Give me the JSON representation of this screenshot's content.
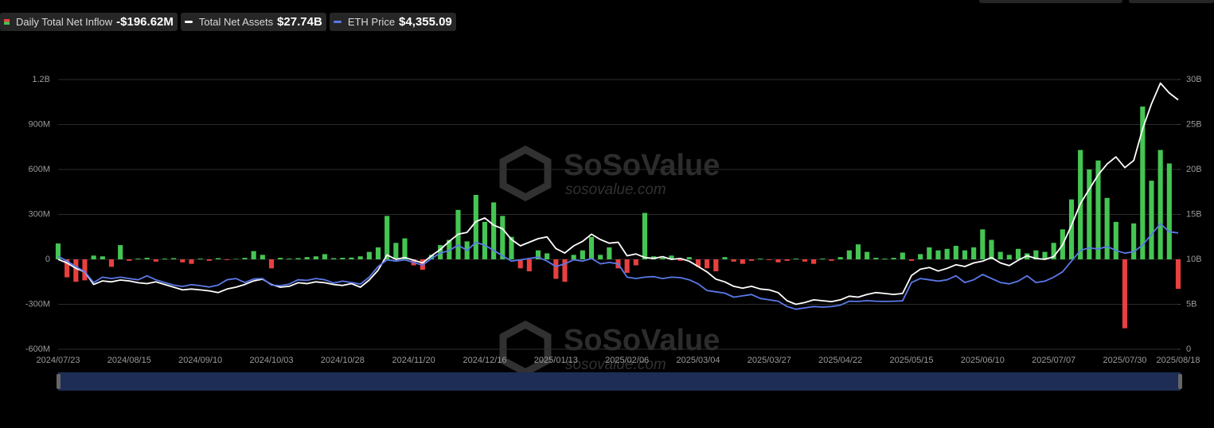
{
  "chart_data": {
    "type": "combo",
    "watermark": {
      "brand": "SoSoValue",
      "site": "sosovalue.com"
    },
    "categories": [
      "2024/07/23",
      null,
      null,
      null,
      null,
      null,
      null,
      null,
      "2024/08/15",
      null,
      null,
      null,
      null,
      null,
      null,
      null,
      "2024/09/10",
      null,
      null,
      null,
      null,
      null,
      null,
      null,
      "2024/10/03",
      null,
      null,
      null,
      null,
      null,
      null,
      null,
      "2024/10/28",
      null,
      null,
      null,
      null,
      null,
      null,
      null,
      "2024/11/20",
      null,
      null,
      null,
      null,
      null,
      null,
      null,
      "2024/12/16",
      null,
      null,
      null,
      null,
      null,
      null,
      null,
      "2025/01/13",
      null,
      null,
      null,
      null,
      null,
      null,
      null,
      "2025/02/06",
      null,
      null,
      null,
      null,
      null,
      null,
      null,
      "2025/03/04",
      null,
      null,
      null,
      null,
      null,
      null,
      null,
      "2025/03/27",
      null,
      null,
      null,
      null,
      null,
      null,
      null,
      "2025/04/22",
      null,
      null,
      null,
      null,
      null,
      null,
      null,
      "2025/05/15",
      null,
      null,
      null,
      null,
      null,
      null,
      null,
      "2025/06/10",
      null,
      null,
      null,
      null,
      null,
      null,
      null,
      "2025/07/07",
      null,
      null,
      null,
      null,
      null,
      null,
      null,
      "2025/07/30",
      null,
      null,
      null,
      null,
      null,
      "2025/08/18"
    ],
    "ylim": [
      -600,
      1200
    ],
    "yticks": [
      {
        "value": -600,
        "label": "-600M"
      },
      {
        "value": -300,
        "label": "-300M"
      },
      0,
      {
        "value": 300,
        "label": "300M"
      },
      {
        "value": 600,
        "label": "600M"
      },
      {
        "value": 900,
        "label": "900M"
      },
      {
        "value": 1200,
        "label": "1.2B"
      }
    ],
    "y2lim": [
      0,
      30
    ],
    "y2ticks": [
      0,
      {
        "value": 5,
        "label": "5B"
      },
      {
        "value": 10,
        "label": "10B"
      },
      {
        "value": 15,
        "label": "15B"
      },
      {
        "value": 20,
        "label": "20B"
      },
      {
        "value": 25,
        "label": "25B"
      },
      {
        "value": 30,
        "label": "30B"
      }
    ],
    "y3lim": [
      0,
      10100
    ],
    "grid": true,
    "series": [
      {
        "name": "Daily Total Net Inflow",
        "current_label": "-$196.62M",
        "type": "bar",
        "axis": "y",
        "color": "#45c553",
        "negative_color": "#e8403f",
        "values": [
          106,
          -120,
          -150,
          -140,
          25,
          20,
          -50,
          95,
          -10,
          5,
          10,
          -15,
          5,
          8,
          -20,
          -30,
          5,
          -10,
          8,
          -5,
          3,
          10,
          55,
          30,
          -60,
          10,
          5,
          8,
          15,
          20,
          35,
          8,
          10,
          12,
          20,
          50,
          80,
          290,
          110,
          140,
          -40,
          -70,
          30,
          95,
          130,
          330,
          120,
          430,
          250,
          380,
          290,
          150,
          -60,
          -80,
          60,
          40,
          -130,
          -150,
          30,
          60,
          150,
          30,
          80,
          -60,
          -90,
          -40,
          310,
          20,
          10,
          25,
          -10,
          15,
          -50,
          -60,
          -80,
          15,
          -15,
          -30,
          -10,
          5,
          -5,
          -20,
          -10,
          5,
          -15,
          -30,
          5,
          -10,
          15,
          60,
          100,
          50,
          10,
          5,
          10,
          45,
          -10,
          35,
          80,
          60,
          70,
          90,
          60,
          80,
          200,
          130,
          50,
          30,
          70,
          40,
          60,
          50,
          110,
          200,
          400,
          730,
          600,
          660,
          410,
          250,
          -460,
          240,
          1020,
          525,
          730,
          640,
          -196.62
        ]
      },
      {
        "name": "Total Net Assets",
        "current_label": "$27.74B",
        "type": "line",
        "axis": "y2",
        "color": "#ffffff",
        "values": [
          10.0,
          9.6,
          9.0,
          8.6,
          7.2,
          7.6,
          7.5,
          7.7,
          7.6,
          7.4,
          7.3,
          7.5,
          7.2,
          6.9,
          6.6,
          6.7,
          6.6,
          6.5,
          6.3,
          6.7,
          6.9,
          7.2,
          7.6,
          7.8,
          7.2,
          6.9,
          7.0,
          7.4,
          7.3,
          7.5,
          7.4,
          7.2,
          7.1,
          7.3,
          6.9,
          7.7,
          8.8,
          10.5,
          10.0,
          10.2,
          9.9,
          9.6,
          10.4,
          11.1,
          12.0,
          12.8,
          13.0,
          14.2,
          14.6,
          13.8,
          13.4,
          12.2,
          11.5,
          11.9,
          12.3,
          12.5,
          11.2,
          10.7,
          11.5,
          12.0,
          12.8,
          12.2,
          11.8,
          11.9,
          10.4,
          10.6,
          10.2,
          10.1,
          10.3,
          10.0,
          10.1,
          9.8,
          9.2,
          8.6,
          7.8,
          7.5,
          7.0,
          6.8,
          7.0,
          6.7,
          6.6,
          6.3,
          5.4,
          5.0,
          5.2,
          5.5,
          5.4,
          5.3,
          5.5,
          5.9,
          5.8,
          6.1,
          6.3,
          6.2,
          6.1,
          6.2,
          8.2,
          8.9,
          9.1,
          8.7,
          9.0,
          9.4,
          9.2,
          9.6,
          9.8,
          10.2,
          9.6,
          9.3,
          9.9,
          10.4,
          10.1,
          10.0,
          10.3,
          11.6,
          13.8,
          16.2,
          17.8,
          19.4,
          20.6,
          21.4,
          20.2,
          21.0,
          24.5,
          27.3,
          29.6,
          28.5,
          27.74
        ]
      },
      {
        "name": "ETH Price",
        "current_label": "$4,355.09",
        "type": "line",
        "axis": "y3",
        "color": "#5b78e8",
        "values": [
          3480,
          3300,
          3100,
          2900,
          2500,
          2700,
          2650,
          2700,
          2650,
          2600,
          2750,
          2600,
          2500,
          2400,
          2350,
          2420,
          2380,
          2330,
          2400,
          2600,
          2650,
          2500,
          2630,
          2650,
          2400,
          2380,
          2440,
          2600,
          2580,
          2650,
          2600,
          2480,
          2550,
          2500,
          2440,
          2700,
          3100,
          3350,
          3300,
          3350,
          3250,
          3150,
          3400,
          3600,
          3700,
          3900,
          3700,
          4000,
          3900,
          3700,
          3500,
          3300,
          3350,
          3400,
          3450,
          3300,
          3100,
          3200,
          3350,
          3300,
          3400,
          3200,
          3250,
          3200,
          2700,
          2650,
          2700,
          2720,
          2650,
          2700,
          2680,
          2600,
          2450,
          2200,
          2150,
          2100,
          1950,
          2000,
          2050,
          1900,
          1850,
          1800,
          1600,
          1500,
          1550,
          1600,
          1580,
          1600,
          1650,
          1800,
          1790,
          1820,
          1800,
          1790,
          1800,
          1810,
          2500,
          2650,
          2600,
          2550,
          2600,
          2750,
          2500,
          2600,
          2800,
          2650,
          2500,
          2450,
          2550,
          2750,
          2500,
          2550,
          2700,
          2900,
          3300,
          3700,
          3800,
          3750,
          3850,
          3700,
          3600,
          3650,
          3900,
          4300,
          4700,
          4400,
          4355.09
        ]
      }
    ]
  }
}
